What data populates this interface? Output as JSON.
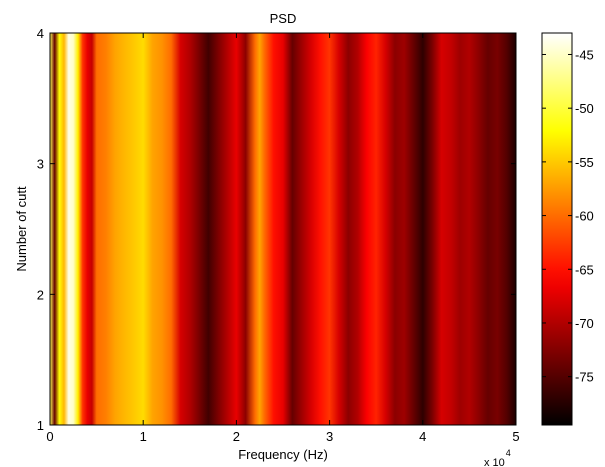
{
  "chart_data": {
    "type": "heatmap",
    "title": "PSD",
    "xlabel": "Frequency (Hz)",
    "ylabel": "Number of cutt",
    "x_exponent_label": "x 10",
    "x_exponent_power": "4",
    "xlim": [
      0,
      5
    ],
    "ylim": [
      1,
      4
    ],
    "x_ticks": [
      "0",
      "1",
      "2",
      "3",
      "4",
      "5"
    ],
    "y_ticks": [
      "1",
      "2",
      "3",
      "4"
    ],
    "colormap": "hot",
    "clim": [
      -79.5,
      -43
    ],
    "colorbar_ticks": [
      "-45",
      "-50",
      "-55",
      "-60",
      "-65",
      "-70",
      "-75"
    ],
    "colorbar_tick_values": [
      -45,
      -50,
      -55,
      -60,
      -65,
      -70,
      -75
    ],
    "note": "Power is nearly constant along the y axis; each column is a vertical band.",
    "psd_profile_x": [
      0.0,
      0.05,
      0.1,
      0.15,
      0.2,
      0.25,
      0.3,
      0.35,
      0.4,
      0.45,
      0.5,
      0.6,
      0.7,
      0.8,
      0.9,
      1.0,
      1.1,
      1.2,
      1.3,
      1.4,
      1.5,
      1.6,
      1.7,
      1.8,
      1.9,
      2.0,
      2.1,
      2.2,
      2.25,
      2.3,
      2.4,
      2.5,
      2.6,
      2.7,
      2.8,
      2.9,
      3.0,
      3.1,
      3.2,
      3.3,
      3.4,
      3.5,
      3.6,
      3.7,
      3.8,
      3.9,
      4.0,
      4.1,
      4.2,
      4.3,
      4.4,
      4.5,
      4.6,
      4.7,
      4.8,
      4.9,
      5.0
    ],
    "psd_profile_db": [
      -49,
      -74,
      -52,
      -56,
      -44,
      -45,
      -53,
      -63,
      -67,
      -69,
      -60,
      -59,
      -57,
      -56,
      -55,
      -54,
      -57,
      -58,
      -60,
      -68,
      -70,
      -73,
      -76,
      -73,
      -70,
      -67,
      -72,
      -60,
      -57,
      -60,
      -65,
      -67,
      -74,
      -71,
      -68,
      -65,
      -63,
      -68,
      -72,
      -70,
      -66,
      -64,
      -68,
      -72,
      -71,
      -74,
      -77,
      -73,
      -68,
      -69,
      -71,
      -70,
      -72,
      -74,
      -73,
      -75,
      -78
    ]
  }
}
